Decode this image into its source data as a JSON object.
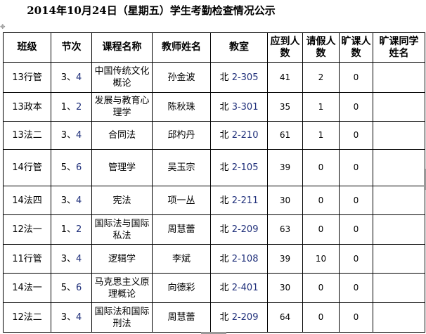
{
  "title": "2014年10月24日（星期五）学生考勤检查情况公示",
  "colors": {
    "digit_accent": "#1f2f7a"
  },
  "table": {
    "headers": [
      "班级",
      "节次",
      "课程名称",
      "教师姓名",
      "教室",
      "应到人数",
      "请假人数",
      "旷课人数",
      "旷课同学姓名"
    ],
    "rows": [
      {
        "class": "13行管",
        "period_a": "3、",
        "period_b": "4",
        "course": "中国传统文化概论",
        "teacher": "孙金波",
        "room_prefix": "北",
        "room": "2-305",
        "expected": "41",
        "leave": "2",
        "absent": "0",
        "absent_names": ""
      },
      {
        "class": "13政本",
        "period_a": "1、",
        "period_b": "2",
        "course": "发展与教育心理学",
        "teacher": "陈秋珠",
        "room_prefix": "北",
        "room": "3-301",
        "expected": "35",
        "leave": "1",
        "absent": "0",
        "absent_names": ""
      },
      {
        "class": "13法二",
        "period_a": "3、",
        "period_b": "4",
        "course": "合同法",
        "teacher": "邱杓丹",
        "room_prefix": "北",
        "room": "2-210",
        "expected": "61",
        "leave": "1",
        "absent": "0",
        "absent_names": ""
      },
      {
        "class": "14行管",
        "period_a": "5、",
        "period_b": "6",
        "course": "管理学",
        "teacher": "吴玉宗",
        "room_prefix": "北",
        "room": "2-105",
        "expected": "39",
        "leave": "0",
        "absent": "0",
        "absent_names": ""
      },
      {
        "class": "14法四",
        "period_a": "3、",
        "period_b": "4",
        "course": "宪法",
        "teacher": "项一丛",
        "room_prefix": "北",
        "room": "2-211",
        "expected": "30",
        "leave": "0",
        "absent": "0",
        "absent_names": ""
      },
      {
        "class": "12法一",
        "period_a": "1、",
        "period_b": "2",
        "course": "国际法与国际私法",
        "teacher": "周慧蕾",
        "room_prefix": "北",
        "room": "2-209",
        "expected": "63",
        "leave": "0",
        "absent": "0",
        "absent_names": ""
      },
      {
        "class": "11行管",
        "period_a": "3、",
        "period_b": "4",
        "course": "逻辑学",
        "teacher": "李斌",
        "room_prefix": "北",
        "room": "2-108",
        "expected": "39",
        "leave": "10",
        "absent": "0",
        "absent_names": ""
      },
      {
        "class": "14法一",
        "period_a": "5、",
        "period_b": "6",
        "course": "马克思主义原理概论",
        "teacher": "向德彩",
        "room_prefix": "北",
        "room": "2-401",
        "expected": "30",
        "leave": "0",
        "absent": "0",
        "absent_names": ""
      },
      {
        "class": "12法二",
        "period_a": "3、",
        "period_b": "4",
        "course": "国际法和国际刑法",
        "teacher": "周慧蕾",
        "room_prefix": "北",
        "room": "2-209",
        "expected": "64",
        "leave": "0",
        "absent": "0",
        "absent_names": ""
      }
    ]
  }
}
